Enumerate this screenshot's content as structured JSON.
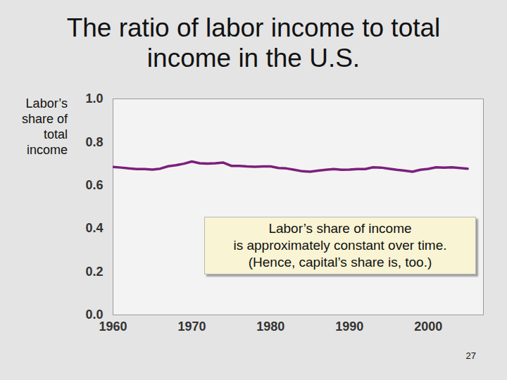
{
  "chart_data": {
    "type": "line",
    "title": "The ratio of labor income to total income in the U.S.",
    "y_label": "Labor’s share of total income",
    "annotations": [
      "Labor’s share of income\nis approximately constant over time.\n(Hence, capital’s share is, too.)",
      "27"
    ],
    "x": [
      1960,
      1961,
      1962,
      1963,
      1964,
      1965,
      1966,
      1967,
      1968,
      1969,
      1970,
      1971,
      1972,
      1973,
      1974,
      1975,
      1976,
      1977,
      1978,
      1979,
      1980,
      1981,
      1982,
      1983,
      1984,
      1985,
      1986,
      1987,
      1988,
      1989,
      1990,
      1991,
      1992,
      1993,
      1994,
      1995,
      1996,
      1997,
      1998,
      1999,
      2000,
      2001,
      2002,
      2003,
      2004,
      2005
    ],
    "series": [
      {
        "name": "Labor’s share of total income",
        "color": "#7b1f7b",
        "values": [
          0.685,
          0.682,
          0.678,
          0.675,
          0.675,
          0.673,
          0.677,
          0.688,
          0.693,
          0.7,
          0.71,
          0.702,
          0.7,
          0.702,
          0.705,
          0.69,
          0.69,
          0.687,
          0.686,
          0.687,
          0.687,
          0.68,
          0.678,
          0.672,
          0.665,
          0.663,
          0.668,
          0.672,
          0.675,
          0.672,
          0.673,
          0.675,
          0.675,
          0.683,
          0.682,
          0.677,
          0.672,
          0.668,
          0.663,
          0.672,
          0.676,
          0.683,
          0.682,
          0.683,
          0.68,
          0.677
        ]
      }
    ],
    "xlim": [
      1960,
      2007
    ],
    "xticks": [
      1960,
      1970,
      1980,
      1990,
      2000
    ],
    "ylim": [
      0,
      1
    ],
    "yticks": [
      0,
      0.2,
      0.4,
      0.6,
      0.8,
      1
    ],
    "grid": false
  }
}
